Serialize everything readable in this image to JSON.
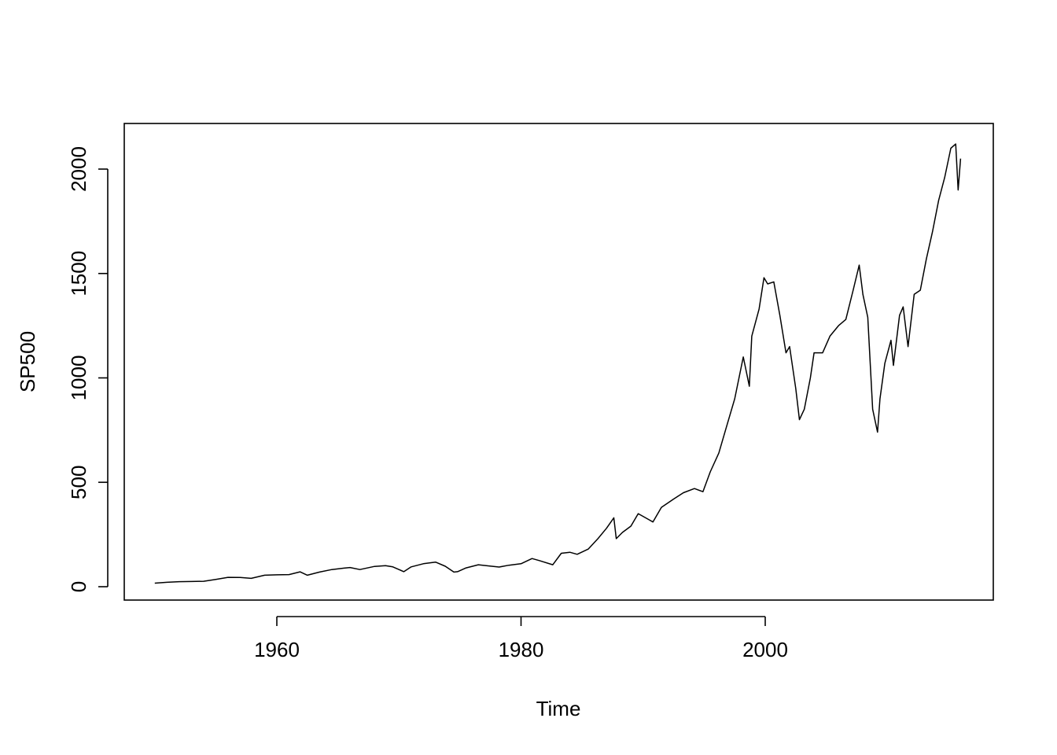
{
  "chart_data": {
    "type": "line",
    "title": "",
    "xlabel": "Time",
    "ylabel": "SP500",
    "xlim": [
      1950.0,
      2016.0
    ],
    "ylim": [
      0,
      2150
    ],
    "x_ticks": [
      1960,
      1980,
      2000
    ],
    "x_tick_labels": [
      "1960",
      "1980",
      "2000"
    ],
    "y_ticks": [
      0,
      500,
      1000,
      1500,
      2000
    ],
    "y_tick_labels": [
      "0",
      "500",
      "1000",
      "1500",
      "2000"
    ],
    "grid": false,
    "legend": "none",
    "line_color": "#000000",
    "series": [
      {
        "x": [
          1950.0,
          1951.0,
          1952.0,
          1953.0,
          1954.0,
          1955.0,
          1956.0,
          1957.0,
          1957.9,
          1959.0,
          1960.0,
          1961.0,
          1961.9,
          1962.5,
          1963.5,
          1964.5,
          1965.5,
          1966.0,
          1966.8,
          1968.0,
          1968.9,
          1969.5,
          1970.4,
          1971.0,
          1972.0,
          1973.0,
          1973.8,
          1974.5,
          1974.8,
          1975.5,
          1976.5,
          1977.3,
          1978.2,
          1979.0,
          1980.0,
          1980.9,
          1981.5,
          1982.6,
          1983.3,
          1984.0,
          1984.6,
          1985.5,
          1986.3,
          1987.0,
          1987.6,
          1987.8,
          1988.3,
          1989.0,
          1989.6,
          1990.5,
          1990.8,
          1991.5,
          1992.5,
          1993.3,
          1994.2,
          1994.9,
          1995.5,
          1996.2,
          1996.8,
          1997.5,
          1998.2,
          1998.7,
          1998.9,
          1999.5,
          1999.9,
          2000.2,
          2000.7,
          2001.2,
          2001.7,
          2002.0,
          2002.5,
          2002.8,
          2003.2,
          2003.7,
          2004.0,
          2004.7,
          2005.3,
          2006.0,
          2006.6,
          2007.2,
          2007.7,
          2008.0,
          2008.4,
          2008.8,
          2009.2,
          2009.4,
          2009.8,
          2010.3,
          2010.5,
          2011.0,
          2011.3,
          2011.7,
          2012.2,
          2012.7,
          2013.2,
          2013.7,
          2014.2,
          2014.7,
          2015.2,
          2015.6,
          2015.8,
          2016.0
        ],
        "y": [
          17,
          21,
          24,
          25,
          26,
          35,
          45,
          44,
          40,
          55,
          57,
          58,
          71,
          55,
          70,
          82,
          89,
          92,
          82,
          97,
          101,
          95,
          72,
          95,
          110,
          118,
          98,
          70,
          72,
          90,
          105,
          100,
          94,
          103,
          110,
          135,
          125,
          105,
          160,
          165,
          155,
          180,
          230,
          280,
          330,
          230,
          260,
          290,
          350,
          320,
          310,
          380,
          420,
          450,
          470,
          455,
          550,
          640,
          760,
          900,
          1100,
          960,
          1200,
          1330,
          1480,
          1450,
          1460,
          1300,
          1120,
          1150,
          950,
          800,
          850,
          1000,
          1120,
          1120,
          1200,
          1250,
          1280,
          1420,
          1540,
          1400,
          1290,
          850,
          740,
          900,
          1070,
          1180,
          1060,
          1300,
          1340,
          1150,
          1400,
          1420,
          1570,
          1700,
          1850,
          1960,
          2100,
          2120,
          1900,
          2050
        ]
      }
    ]
  }
}
